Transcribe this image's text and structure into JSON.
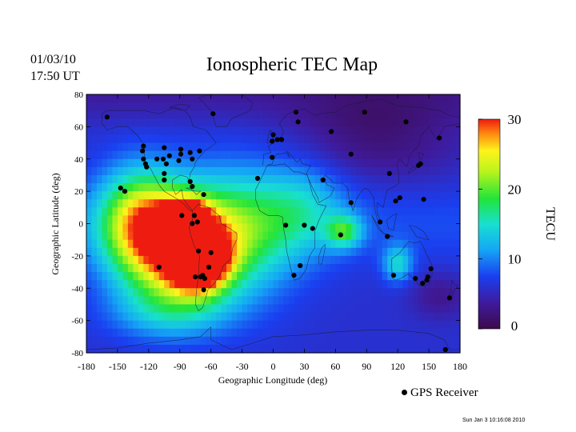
{
  "header": {
    "date": "01/03/10",
    "time": "17:50 UT",
    "title": "Ionospheric TEC Map",
    "stamp": "Sun Jan  3 10:16:08 2010"
  },
  "legend": {
    "receiver_label": "GPS Receiver"
  },
  "chart_data": {
    "type": "heatmap",
    "title": "Ionospheric TEC Map",
    "xlabel": "Geographic Longitude (deg)",
    "ylabel": "Geographic Latitude (deg)",
    "xlim": [
      -180,
      180
    ],
    "ylim": [
      -80,
      80
    ],
    "x_ticks": [
      -180,
      -150,
      -120,
      -90,
      -60,
      -30,
      0,
      30,
      60,
      90,
      120,
      150,
      180
    ],
    "y_ticks": [
      80,
      60,
      40,
      20,
      0,
      -20,
      -40,
      -60,
      -80
    ],
    "colorbar": {
      "label": "TECU",
      "range": [
        0,
        30
      ],
      "ticks": [
        30,
        20,
        10,
        0
      ]
    },
    "background_tecu": 6,
    "tec_features": [
      {
        "lon": -72,
        "lat": -22,
        "peak": 30,
        "sx": 18,
        "sy": 12
      },
      {
        "lon": -85,
        "lat": 2,
        "peak": 25,
        "sx": 14,
        "sy": 8
      },
      {
        "lon": -95,
        "lat": -15,
        "peak": 22,
        "sx": 38,
        "sy": 24
      },
      {
        "lon": -130,
        "lat": 5,
        "peak": 12,
        "sx": 28,
        "sy": 22
      },
      {
        "lon": -30,
        "lat": -5,
        "peak": 10,
        "sx": 38,
        "sy": 28
      },
      {
        "lon": 68,
        "lat": -5,
        "peak": 10,
        "sx": 12,
        "sy": 7
      },
      {
        "lon": 120,
        "lat": -25,
        "peak": 8,
        "sx": 10,
        "sy": 8
      },
      {
        "lon": 30,
        "lat": 10,
        "peak": 6,
        "sx": 30,
        "sy": 20
      },
      {
        "lon": -100,
        "lat": -55,
        "peak": 5,
        "sx": 40,
        "sy": 12
      },
      {
        "lon": 100,
        "lat": 55,
        "peak": -4,
        "sx": 60,
        "sy": 20
      },
      {
        "lon": 160,
        "lat": -45,
        "peak": -3,
        "sx": 20,
        "sy": 10
      }
    ],
    "receivers": [
      [
        -160,
        66
      ],
      [
        -147,
        22
      ],
      [
        -143,
        20
      ],
      [
        -125,
        48
      ],
      [
        -126,
        45
      ],
      [
        -125,
        40
      ],
      [
        -123,
        37
      ],
      [
        -122,
        35
      ],
      [
        -112,
        40
      ],
      [
        -105,
        47
      ],
      [
        -106,
        40
      ],
      [
        -103,
        37
      ],
      [
        -100,
        42
      ],
      [
        -105,
        31
      ],
      [
        -105,
        27
      ],
      [
        -89,
        46
      ],
      [
        -89,
        43
      ],
      [
        -91,
        39
      ],
      [
        -80,
        44
      ],
      [
        -78,
        40
      ],
      [
        -71,
        45
      ],
      [
        -80,
        26
      ],
      [
        -78,
        23
      ],
      [
        -67,
        18
      ],
      [
        -88,
        5
      ],
      [
        -76,
        5
      ],
      [
        -78,
        0
      ],
      [
        -73,
        1
      ],
      [
        -110,
        -27
      ],
      [
        -72,
        -17
      ],
      [
        -68,
        -32
      ],
      [
        -70,
        -33
      ],
      [
        -66,
        -34
      ],
      [
        -75,
        -33
      ],
      [
        -60,
        -18
      ],
      [
        -62,
        -27
      ],
      [
        -67,
        -41
      ],
      [
        -58,
        68
      ],
      [
        -15,
        28
      ],
      [
        -1,
        51
      ],
      [
        0,
        55
      ],
      [
        4,
        52
      ],
      [
        8,
        52
      ],
      [
        -1,
        41
      ],
      [
        22,
        69
      ],
      [
        24,
        63
      ],
      [
        20,
        -32
      ],
      [
        26,
        -26
      ],
      [
        12,
        -1
      ],
      [
        30,
        -1
      ],
      [
        38,
        -3
      ],
      [
        48,
        27
      ],
      [
        56,
        57
      ],
      [
        75,
        43
      ],
      [
        88,
        69
      ],
      [
        75,
        13
      ],
      [
        65,
        -7
      ],
      [
        103,
        1
      ],
      [
        110,
        -8
      ],
      [
        112,
        31
      ],
      [
        118,
        14
      ],
      [
        122,
        16
      ],
      [
        142,
        37
      ],
      [
        140,
        36
      ],
      [
        145,
        15
      ],
      [
        128,
        63
      ],
      [
        160,
        53
      ],
      [
        116,
        -32
      ],
      [
        137,
        -34
      ],
      [
        144,
        -37
      ],
      [
        148,
        -35
      ],
      [
        149,
        -33
      ],
      [
        152,
        -28
      ],
      [
        170,
        -46
      ],
      [
        166,
        -78
      ]
    ]
  }
}
